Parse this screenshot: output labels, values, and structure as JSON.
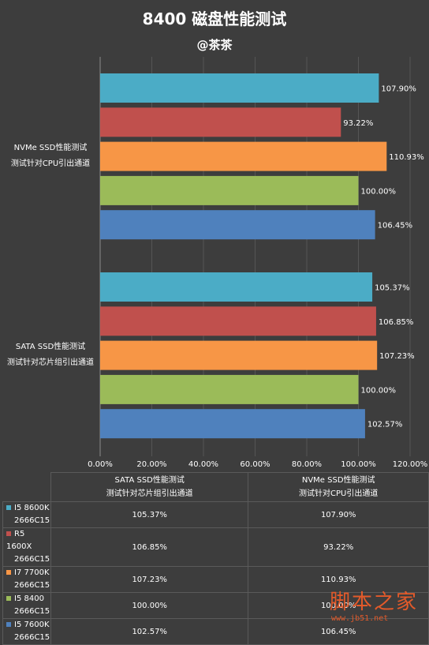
{
  "title": "8400 磁盘性能测试",
  "subtitle": "@茶茶",
  "chart_data": {
    "type": "bar",
    "orientation": "horizontal",
    "categories": [
      {
        "line1": "NVMe SSD性能测试",
        "line2": "测试针对CPU引出通道"
      },
      {
        "line1": "SATA SSD性能测试",
        "line2": "测试针对芯片组引出通道"
      }
    ],
    "series": [
      {
        "name": "I5 8600K 2666C15",
        "name_line1": "I5 8600K",
        "name_line2": "2666C15",
        "color": "#4bacc6",
        "values": [
          107.9,
          105.37
        ],
        "labels": [
          "107.90%",
          "105.37%"
        ]
      },
      {
        "name": "R5 1600X 2666C15",
        "name_line1": "R5 1600X",
        "name_line2": "2666C15",
        "color": "#c0504d",
        "values": [
          93.22,
          106.85
        ],
        "labels": [
          "93.22%",
          "106.85%"
        ]
      },
      {
        "name": "I7 7700K 2666C15",
        "name_line1": "I7 7700K",
        "name_line2": "2666C15",
        "color": "#f79646",
        "values": [
          110.93,
          107.23
        ],
        "labels": [
          "110.93%",
          "107.23%"
        ]
      },
      {
        "name": "I5 8400 2666C15",
        "name_line1": "I5 8400",
        "name_line2": "2666C15",
        "color": "#9bbb59",
        "values": [
          100.0,
          100.0
        ],
        "labels": [
          "100.00%",
          "100.00%"
        ]
      },
      {
        "name": "I5 7600K 2666C15",
        "name_line1": "I5 7600K",
        "name_line2": "2666C15",
        "color": "#4f81bd",
        "values": [
          106.45,
          102.57
        ],
        "labels": [
          "106.45%",
          "102.57%"
        ]
      }
    ],
    "xlim": [
      0,
      120
    ],
    "xticks": [
      "0.00%",
      "20.00%",
      "40.00%",
      "60.00%",
      "80.00%",
      "100.00%",
      "120.00%"
    ],
    "grid": true,
    "data_table": {
      "columns": [
        {
          "line1": "SATA SSD性能测试",
          "line2": "测试针对芯片组引出通道"
        },
        {
          "line1": "NVMe SSD性能测试",
          "line2": "测试针对CPU引出通道"
        }
      ]
    }
  },
  "watermark": {
    "text": "脚本之家",
    "url": "www.jb51.net"
  }
}
